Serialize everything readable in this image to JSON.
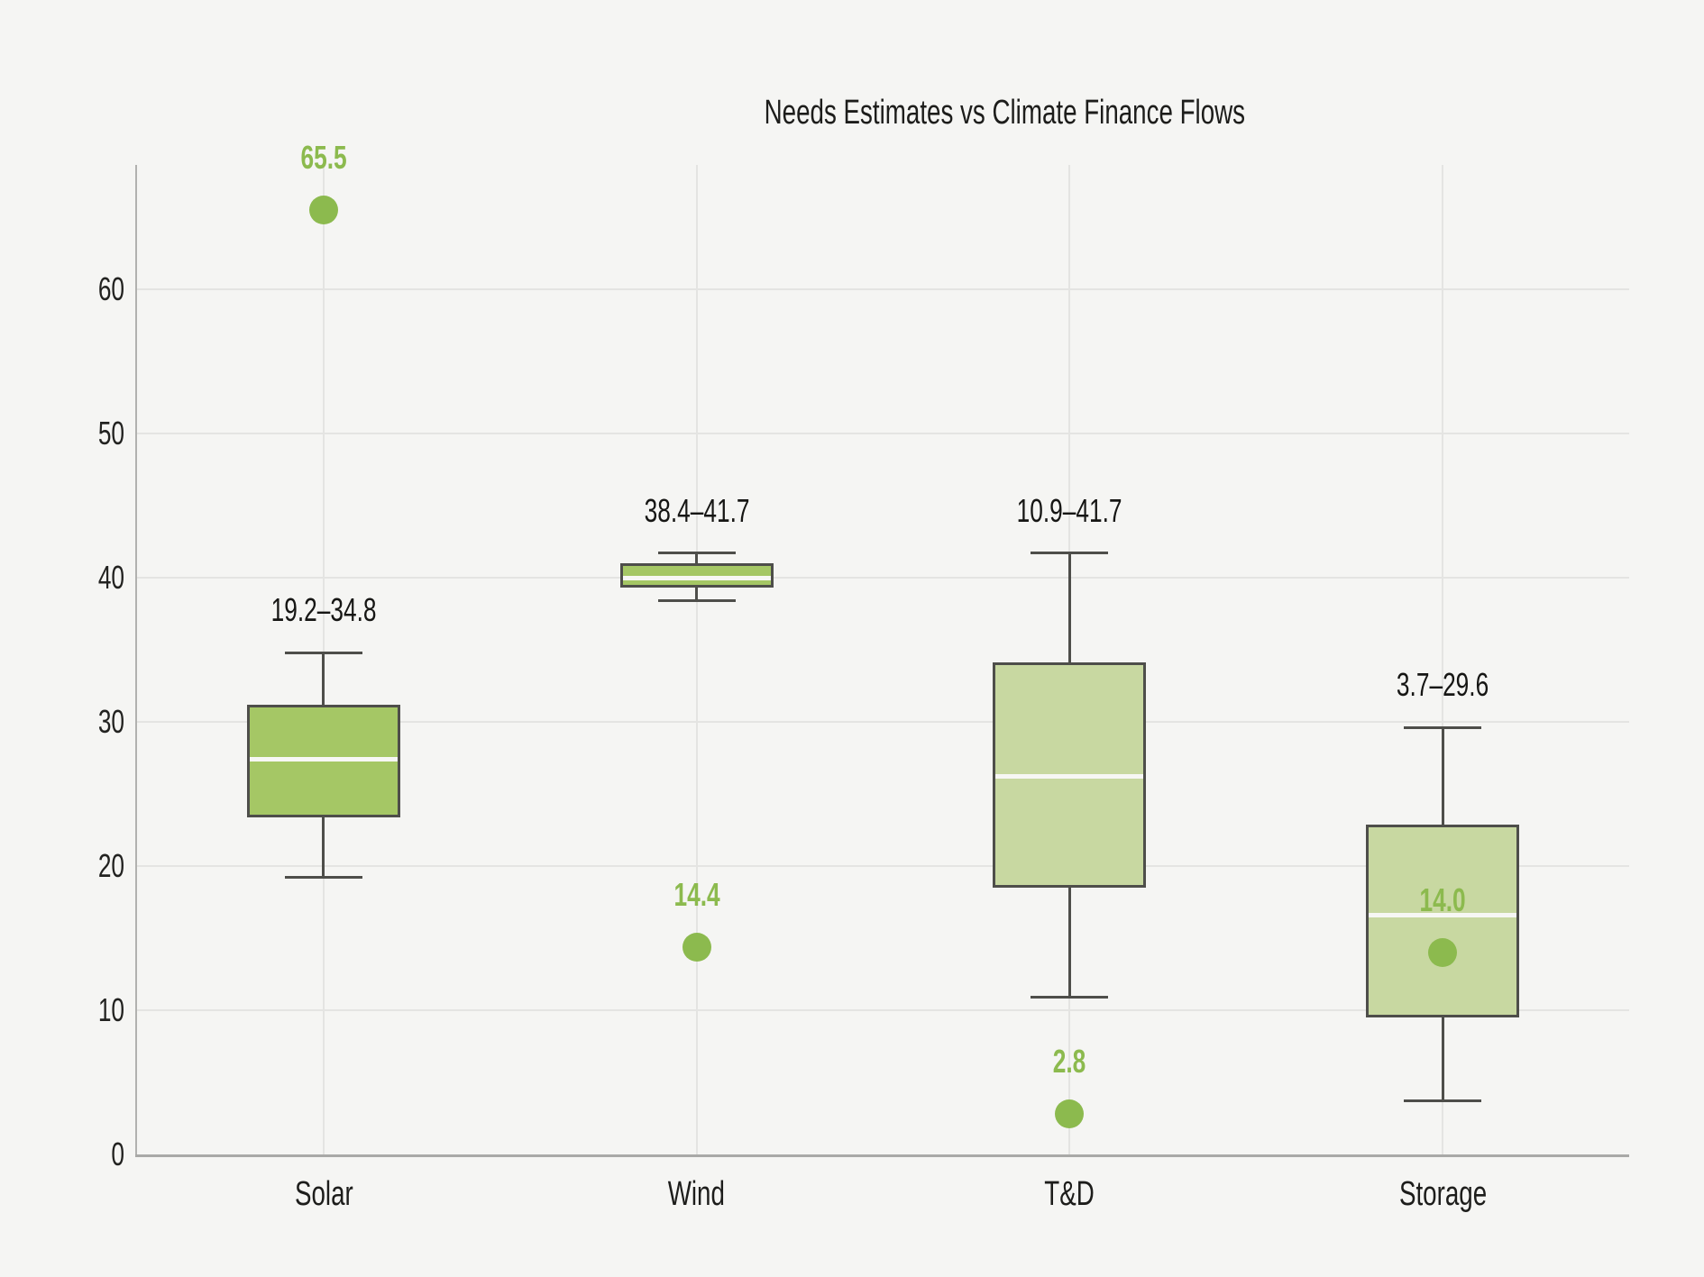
{
  "chart_data": {
    "type": "box",
    "title": "Needs Estimates vs Climate Finance Flows",
    "categories": [
      "Solar",
      "Wind",
      "T&D",
      "Storage"
    ],
    "xlabel": "",
    "ylabel": "",
    "ylim": [
      0,
      68.6
    ],
    "yticks": [
      0,
      10,
      20,
      30,
      40,
      50,
      60
    ],
    "grid": true,
    "legend": "none",
    "series": [
      {
        "category": "Solar",
        "whisker_low": 19.2,
        "q1": 23.4,
        "median": 27.4,
        "q3": 31.2,
        "whisker_high": 34.8,
        "range_label": "19.2–34.8",
        "flow_point": 65.5,
        "flow_label": "65.5",
        "box_color": "#a5c765"
      },
      {
        "category": "Wind",
        "whisker_low": 38.4,
        "q1": 39.3,
        "median": 40.0,
        "q3": 41.0,
        "whisker_high": 41.7,
        "range_label": "38.4–41.7",
        "flow_point": 14.4,
        "flow_label": "14.4",
        "box_color": "#a5c765"
      },
      {
        "category": "T&D",
        "whisker_low": 10.9,
        "q1": 18.5,
        "median": 26.2,
        "q3": 34.1,
        "whisker_high": 41.7,
        "range_label": "10.9–41.7",
        "flow_point": 2.8,
        "flow_label": "2.8",
        "box_color": "#c8d8a1"
      },
      {
        "category": "Storage",
        "whisker_low": 3.7,
        "q1": 9.5,
        "median": 16.6,
        "q3": 22.9,
        "whisker_high": 29.6,
        "range_label": "3.7–29.6",
        "flow_point": 14.0,
        "flow_label": "14.0",
        "box_color": "#c8d8a1"
      }
    ],
    "colors": {
      "background": "#f5f5f3",
      "gridline": "#e4e4e2",
      "axis_line": "#a9a9a7",
      "spine": "#b1b1af",
      "box_border": "#4e4e4a",
      "median_line": "#f7f7f4",
      "flow_dot": "#8cba4e",
      "needs_box_dark": "#a5c765",
      "needs_box_light": "#c8d8a1",
      "annotation_text": "#161614"
    }
  }
}
